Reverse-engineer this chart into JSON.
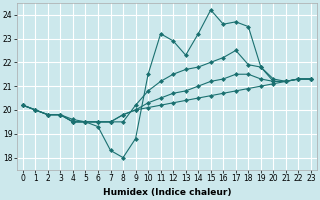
{
  "xlabel": "Humidex (Indice chaleur)",
  "xlim": [
    -0.5,
    23.5
  ],
  "ylim": [
    17.5,
    24.5
  ],
  "yticks": [
    18,
    19,
    20,
    21,
    22,
    23,
    24
  ],
  "xticks": [
    0,
    1,
    2,
    3,
    4,
    5,
    6,
    7,
    8,
    9,
    10,
    11,
    12,
    13,
    14,
    15,
    16,
    17,
    18,
    19,
    20,
    21,
    22,
    23
  ],
  "bg_color": "#cce8ec",
  "grid_color": "#ffffff",
  "line_color": "#1a7070",
  "lines": [
    {
      "x": [
        0,
        1,
        2,
        3,
        4,
        5,
        6,
        7,
        8,
        9,
        10,
        11,
        12,
        13,
        14,
        15,
        16,
        17,
        18,
        19,
        20,
        21,
        22,
        23
      ],
      "y": [
        20.2,
        20.0,
        19.8,
        19.8,
        19.5,
        19.5,
        19.3,
        18.3,
        18.0,
        18.8,
        21.5,
        23.2,
        22.9,
        22.3,
        23.2,
        24.2,
        23.6,
        23.7,
        23.5,
        21.8,
        21.2,
        21.2,
        21.3,
        21.3
      ]
    },
    {
      "x": [
        0,
        1,
        2,
        3,
        4,
        5,
        6,
        7,
        8,
        9,
        10,
        11,
        12,
        13,
        14,
        15,
        16,
        17,
        18,
        19,
        20,
        21,
        22,
        23
      ],
      "y": [
        20.2,
        20.0,
        19.8,
        19.8,
        19.5,
        19.5,
        19.5,
        19.5,
        19.5,
        20.2,
        20.8,
        21.2,
        21.5,
        21.7,
        21.8,
        22.0,
        22.2,
        22.5,
        21.9,
        21.8,
        21.3,
        21.2,
        21.3,
        21.3
      ]
    },
    {
      "x": [
        0,
        1,
        2,
        3,
        4,
        5,
        6,
        7,
        8,
        9,
        10,
        11,
        12,
        13,
        14,
        15,
        16,
        17,
        18,
        19,
        20,
        21,
        22,
        23
      ],
      "y": [
        20.2,
        20.0,
        19.8,
        19.8,
        19.5,
        19.5,
        19.5,
        19.5,
        19.8,
        20.0,
        20.3,
        20.5,
        20.7,
        20.8,
        21.0,
        21.2,
        21.3,
        21.5,
        21.5,
        21.3,
        21.2,
        21.2,
        21.3,
        21.3
      ]
    },
    {
      "x": [
        0,
        1,
        2,
        3,
        4,
        5,
        6,
        7,
        8,
        9,
        10,
        11,
        12,
        13,
        14,
        15,
        16,
        17,
        18,
        19,
        20,
        21,
        22,
        23
      ],
      "y": [
        20.2,
        20.0,
        19.8,
        19.8,
        19.6,
        19.5,
        19.5,
        19.5,
        19.8,
        20.0,
        20.1,
        20.2,
        20.3,
        20.4,
        20.5,
        20.6,
        20.7,
        20.8,
        20.9,
        21.0,
        21.1,
        21.2,
        21.3,
        21.3
      ]
    }
  ],
  "marker": "D",
  "markersize": 2.0,
  "linewidth": 0.8,
  "tick_fontsize": 5.5,
  "label_fontsize": 6.5
}
